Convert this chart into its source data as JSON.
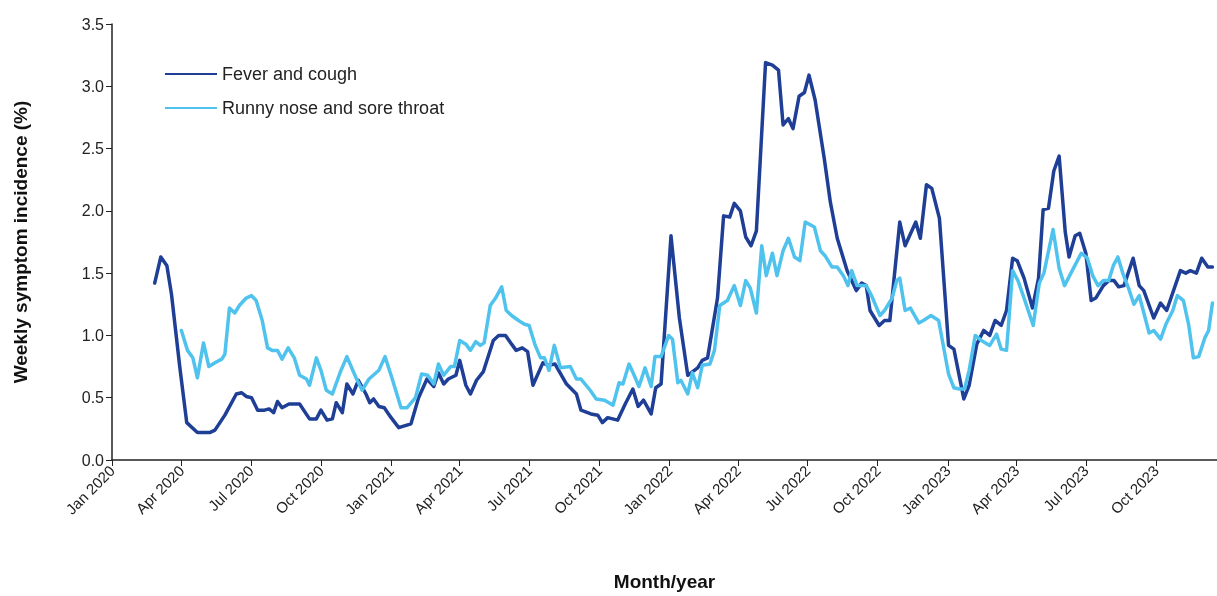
{
  "chart_data": {
    "type": "line",
    "xlabel": "Month/year",
    "ylabel": "Weekly symptom incidence (%)",
    "xlim": [
      "2020-01-01",
      "2023-12-20"
    ],
    "xticks": [
      {
        "value": "2020-01-01",
        "label": "Jan 2020"
      },
      {
        "value": "2020-04-01",
        "label": "Apr 2020"
      },
      {
        "value": "2020-07-01",
        "label": "Jul 2020"
      },
      {
        "value": "2020-10-01",
        "label": "Oct 2020"
      },
      {
        "value": "2021-01-01",
        "label": "Jan 2021"
      },
      {
        "value": "2021-04-01",
        "label": "Apr 2021"
      },
      {
        "value": "2021-07-01",
        "label": "Jul 2021"
      },
      {
        "value": "2021-10-01",
        "label": "Oct 2021"
      },
      {
        "value": "2022-01-01",
        "label": "Jan 2022"
      },
      {
        "value": "2022-04-01",
        "label": "Apr 2022"
      },
      {
        "value": "2022-07-01",
        "label": "Jul 2022"
      },
      {
        "value": "2022-10-01",
        "label": "Oct 2022"
      },
      {
        "value": "2023-01-01",
        "label": "Jan 2023"
      },
      {
        "value": "2023-04-01",
        "label": "Apr 2023"
      },
      {
        "value": "2023-07-01",
        "label": "Jul 2023"
      },
      {
        "value": "2023-10-01",
        "label": "Oct 2023"
      }
    ],
    "ylim": [
      0,
      3.5
    ],
    "yticks": [
      {
        "value": 0,
        "label": "0.0"
      },
      {
        "value": 0.5,
        "label": "0.5"
      },
      {
        "value": 1,
        "label": "1.0"
      },
      {
        "value": 1.5,
        "label": "1.5"
      },
      {
        "value": 2,
        "label": "2.0"
      },
      {
        "value": 2.5,
        "label": "2.5"
      },
      {
        "value": 3,
        "label": "3.0"
      },
      {
        "value": 3.5,
        "label": "3.5"
      }
    ],
    "grid": false,
    "legend": "top left",
    "marker": "none",
    "line_style": "solid",
    "series": [
      {
        "name": "Fever and cough",
        "color": "#1f3f96",
        "x": [
          "2020-02-26",
          "2020-03-05",
          "2020-03-13",
          "2020-03-19",
          "2020-03-30",
          "2020-04-08",
          "2020-04-22",
          "2020-05-08",
          "2020-05-15",
          "2020-05-28",
          "2020-06-12",
          "2020-06-19",
          "2020-06-25",
          "2020-07-02",
          "2020-07-10",
          "2020-07-19",
          "2020-07-25",
          "2020-07-31",
          "2020-08-05",
          "2020-08-11",
          "2020-08-20",
          "2020-09-03",
          "2020-09-16",
          "2020-09-25",
          "2020-10-01",
          "2020-10-09",
          "2020-10-16",
          "2020-10-21",
          "2020-10-29",
          "2020-11-04",
          "2020-11-12",
          "2020-11-19",
          "2020-11-29",
          "2020-12-04",
          "2020-12-09",
          "2020-12-16",
          "2020-12-23",
          "2021-01-01",
          "2021-01-11",
          "2021-01-27",
          "2021-02-06",
          "2021-02-17",
          "2021-02-26",
          "2021-03-04",
          "2021-03-11",
          "2021-03-17",
          "2021-03-27",
          "2021-04-01",
          "2021-04-09",
          "2021-04-15",
          "2021-04-23",
          "2021-05-02",
          "2021-05-15",
          "2021-05-22",
          "2021-05-31",
          "2021-06-08",
          "2021-06-14",
          "2021-06-22",
          "2021-06-29",
          "2021-07-06",
          "2021-07-19",
          "2021-07-26",
          "2021-08-04",
          "2021-08-19",
          "2021-09-01",
          "2021-09-07",
          "2021-09-20",
          "2021-09-29",
          "2021-10-05",
          "2021-10-12",
          "2021-10-25",
          "2021-11-04",
          "2021-11-14",
          "2021-11-21",
          "2021-11-28",
          "2021-12-08",
          "2021-12-14",
          "2021-12-21",
          "2022-01-03",
          "2022-01-14",
          "2022-01-25",
          "2022-02-07",
          "2022-02-13",
          "2022-02-20",
          "2022-03-05",
          "2022-03-13",
          "2022-03-21",
          "2022-03-27",
          "2022-04-04",
          "2022-04-11",
          "2022-04-18",
          "2022-04-25",
          "2022-05-07",
          "2022-05-16",
          "2022-05-24",
          "2022-05-30",
          "2022-06-06",
          "2022-06-12",
          "2022-06-20",
          "2022-06-27",
          "2022-07-03",
          "2022-07-11",
          "2022-07-23",
          "2022-07-31",
          "2022-08-09",
          "2022-08-22",
          "2022-09-03",
          "2022-09-10",
          "2022-09-16",
          "2022-09-21",
          "2022-10-03",
          "2022-10-10",
          "2022-10-17",
          "2022-10-30",
          "2022-11-06",
          "2022-11-20",
          "2022-11-26",
          "2022-12-04",
          "2022-12-11",
          "2022-12-21",
          "2023-01-02",
          "2023-01-09",
          "2023-01-22",
          "2023-01-29",
          "2023-02-08",
          "2023-02-17",
          "2023-02-25",
          "2023-03-04",
          "2023-03-12",
          "2023-03-19",
          "2023-03-27",
          "2023-04-02",
          "2023-04-11",
          "2023-04-22",
          "2023-04-30",
          "2023-05-06",
          "2023-05-13",
          "2023-05-20",
          "2023-05-27",
          "2023-06-04",
          "2023-06-09",
          "2023-06-17",
          "2023-06-23",
          "2023-07-01",
          "2023-07-08",
          "2023-07-14",
          "2023-07-24",
          "2023-07-31",
          "2023-08-07",
          "2023-08-13",
          "2023-08-20",
          "2023-09-01",
          "2023-09-09",
          "2023-09-15",
          "2023-09-28",
          "2023-10-07",
          "2023-10-15",
          "2023-11-02",
          "2023-11-09",
          "2023-11-15",
          "2023-11-23",
          "2023-11-30",
          "2023-12-08",
          "2023-12-14"
        ],
        "values": [
          1.42,
          1.63,
          1.56,
          1.33,
          0.74,
          0.3,
          0.22,
          0.22,
          0.24,
          0.36,
          0.53,
          0.54,
          0.51,
          0.5,
          0.4,
          0.4,
          0.41,
          0.38,
          0.47,
          0.42,
          0.45,
          0.45,
          0.33,
          0.33,
          0.4,
          0.32,
          0.33,
          0.46,
          0.38,
          0.61,
          0.53,
          0.64,
          0.53,
          0.46,
          0.49,
          0.43,
          0.42,
          0.34,
          0.26,
          0.29,
          0.5,
          0.65,
          0.59,
          0.7,
          0.61,
          0.65,
          0.68,
          0.8,
          0.6,
          0.53,
          0.64,
          0.71,
          0.96,
          1.0,
          1.0,
          0.93,
          0.88,
          0.9,
          0.87,
          0.6,
          0.78,
          0.76,
          0.77,
          0.61,
          0.53,
          0.4,
          0.37,
          0.36,
          0.3,
          0.34,
          0.32,
          0.45,
          0.57,
          0.43,
          0.48,
          0.37,
          0.58,
          0.61,
          1.8,
          1.14,
          0.68,
          0.74,
          0.8,
          0.82,
          1.3,
          1.96,
          1.95,
          2.06,
          2.0,
          1.79,
          1.72,
          1.84,
          3.19,
          3.17,
          3.13,
          2.69,
          2.74,
          2.66,
          2.92,
          2.95,
          3.09,
          2.89,
          2.42,
          2.07,
          1.78,
          1.52,
          1.36,
          1.42,
          1.4,
          1.2,
          1.08,
          1.12,
          1.12,
          1.91,
          1.72,
          1.91,
          1.78,
          2.21,
          2.18,
          1.94,
          0.92,
          0.89,
          0.49,
          0.6,
          0.93,
          1.04,
          1.0,
          1.12,
          1.08,
          1.2,
          1.62,
          1.6,
          1.46,
          1.22,
          1.46,
          2.01,
          2.02,
          2.32,
          2.44,
          1.83,
          1.63,
          1.8,
          1.82,
          1.66,
          1.28,
          1.3,
          1.4,
          1.44,
          1.44,
          1.39,
          1.4,
          1.62,
          1.4,
          1.36,
          1.14,
          1.26,
          1.2,
          1.52,
          1.5,
          1.52,
          1.5,
          1.62,
          1.55,
          1.55
        ]
      },
      {
        "name": "Runny nose and sore throat",
        "color": "#4fc3ee",
        "x": [
          "2020-04-01",
          "2020-04-09",
          "2020-04-16",
          "2020-04-22",
          "2020-04-30",
          "2020-05-07",
          "2020-05-15",
          "2020-05-24",
          "2020-05-28",
          "2020-06-03",
          "2020-06-10",
          "2020-06-16",
          "2020-06-25",
          "2020-07-02",
          "2020-07-08",
          "2020-07-16",
          "2020-07-23",
          "2020-07-29",
          "2020-08-05",
          "2020-08-11",
          "2020-08-19",
          "2020-08-27",
          "2020-09-03",
          "2020-09-12",
          "2020-09-16",
          "2020-09-25",
          "2020-10-01",
          "2020-10-08",
          "2020-10-16",
          "2020-10-26",
          "2020-11-04",
          "2020-11-16",
          "2020-11-24",
          "2020-12-03",
          "2020-12-16",
          "2020-12-24",
          "2021-01-02",
          "2021-01-14",
          "2021-01-22",
          "2021-02-02",
          "2021-02-10",
          "2021-02-18",
          "2021-02-26",
          "2021-03-04",
          "2021-03-11",
          "2021-03-20",
          "2021-03-25",
          "2021-04-01",
          "2021-04-09",
          "2021-04-15",
          "2021-04-22",
          "2021-04-28",
          "2021-05-03",
          "2021-05-11",
          "2021-05-18",
          "2021-05-26",
          "2021-06-01",
          "2021-06-08",
          "2021-06-17",
          "2021-06-25",
          "2021-07-01",
          "2021-07-09",
          "2021-07-16",
          "2021-07-21",
          "2021-07-27",
          "2021-08-03",
          "2021-08-11",
          "2021-08-24",
          "2021-09-01",
          "2021-09-07",
          "2021-09-19",
          "2021-09-27",
          "2021-10-08",
          "2021-10-19",
          "2021-10-27",
          "2021-11-01",
          "2021-11-09",
          "2021-11-15",
          "2021-11-22",
          "2021-11-30",
          "2021-12-08",
          "2021-12-13",
          "2021-12-21",
          "2021-12-31",
          "2022-01-05",
          "2022-01-12",
          "2022-01-16",
          "2022-01-25",
          "2022-01-31",
          "2022-02-07",
          "2022-02-13",
          "2022-02-23",
          "2022-03-01",
          "2022-03-08",
          "2022-03-18",
          "2022-03-27",
          "2022-04-04",
          "2022-04-11",
          "2022-04-17",
          "2022-04-25",
          "2022-05-02",
          "2022-05-08",
          "2022-05-16",
          "2022-05-22",
          "2022-05-30",
          "2022-06-06",
          "2022-06-14",
          "2022-06-21",
          "2022-06-28",
          "2022-07-10",
          "2022-07-18",
          "2022-07-24",
          "2022-08-02",
          "2022-08-09",
          "2022-08-17",
          "2022-08-23",
          "2022-08-28",
          "2022-09-04",
          "2022-09-16",
          "2022-09-23",
          "2022-10-04",
          "2022-10-10",
          "2022-10-20",
          "2022-10-26",
          "2022-10-30",
          "2022-11-06",
          "2022-11-13",
          "2022-11-24",
          "2022-11-30",
          "2022-12-10",
          "2022-12-20",
          "2023-01-02",
          "2023-01-09",
          "2023-01-16",
          "2023-01-23",
          "2023-01-29",
          "2023-02-06",
          "2023-02-14",
          "2023-02-25",
          "2023-03-06",
          "2023-03-12",
          "2023-03-19",
          "2023-03-27",
          "2023-04-03",
          "2023-04-11",
          "2023-04-23",
          "2023-05-01",
          "2023-05-07",
          "2023-05-19",
          "2023-05-27",
          "2023-06-03",
          "2023-06-14",
          "2023-06-25",
          "2023-07-03",
          "2023-07-10",
          "2023-07-17",
          "2023-07-24",
          "2023-07-31",
          "2023-08-06",
          "2023-08-12",
          "2023-08-19",
          "2023-08-26",
          "2023-09-02",
          "2023-09-09",
          "2023-09-22",
          "2023-09-28",
          "2023-10-07",
          "2023-10-14",
          "2023-10-23",
          "2023-10-29",
          "2023-11-06",
          "2023-11-13",
          "2023-11-19",
          "2023-11-26",
          "2023-12-04",
          "2023-12-09",
          "2023-12-14"
        ],
        "values": [
          1.04,
          0.88,
          0.82,
          0.66,
          0.94,
          0.75,
          0.78,
          0.81,
          0.85,
          1.22,
          1.18,
          1.24,
          1.3,
          1.32,
          1.28,
          1.12,
          0.9,
          0.88,
          0.88,
          0.81,
          0.9,
          0.82,
          0.68,
          0.65,
          0.6,
          0.82,
          0.72,
          0.56,
          0.53,
          0.7,
          0.83,
          0.66,
          0.56,
          0.65,
          0.72,
          0.83,
          0.66,
          0.42,
          0.42,
          0.5,
          0.69,
          0.68,
          0.61,
          0.77,
          0.68,
          0.75,
          0.75,
          0.96,
          0.93,
          0.88,
          0.95,
          0.92,
          0.94,
          1.24,
          1.3,
          1.39,
          1.2,
          1.16,
          1.12,
          1.09,
          1.08,
          0.92,
          0.82,
          0.82,
          0.72,
          0.92,
          0.74,
          0.75,
          0.65,
          0.65,
          0.56,
          0.49,
          0.48,
          0.44,
          0.62,
          0.61,
          0.77,
          0.69,
          0.59,
          0.74,
          0.59,
          0.83,
          0.83,
          1.0,
          0.97,
          0.62,
          0.64,
          0.53,
          0.7,
          0.58,
          0.76,
          0.77,
          0.88,
          1.24,
          1.28,
          1.4,
          1.24,
          1.44,
          1.38,
          1.18,
          1.72,
          1.48,
          1.66,
          1.48,
          1.68,
          1.78,
          1.63,
          1.6,
          1.91,
          1.87,
          1.68,
          1.64,
          1.55,
          1.55,
          1.48,
          1.4,
          1.52,
          1.4,
          1.4,
          1.32,
          1.16,
          1.2,
          1.3,
          1.44,
          1.46,
          1.2,
          1.22,
          1.1,
          1.12,
          1.16,
          1.12,
          0.69,
          0.58,
          0.57,
          0.57,
          0.72,
          1.0,
          0.96,
          0.92,
          1.01,
          0.89,
          0.88,
          1.52,
          1.44,
          1.3,
          1.08,
          1.42,
          1.5,
          1.85,
          1.54,
          1.4,
          1.53,
          1.66,
          1.62,
          1.48,
          1.4,
          1.44,
          1.44,
          1.56,
          1.63,
          1.49,
          1.38,
          1.25,
          1.32,
          1.02,
          1.04,
          0.97,
          1.09,
          1.2,
          1.32,
          1.28,
          1.08,
          0.82,
          0.83,
          0.98,
          1.04,
          1.26
        ]
      }
    ]
  }
}
